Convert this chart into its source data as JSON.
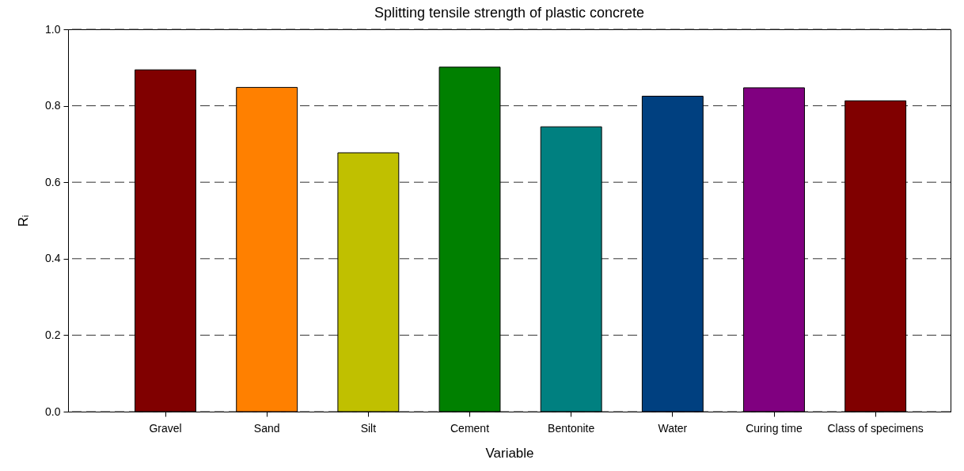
{
  "chart_data": {
    "type": "bar",
    "title": "Splitting tensile strength of plastic concrete",
    "xlabel": "Variable",
    "ylabel": "Rᵢ",
    "categories": [
      "Gravel",
      "Sand",
      "Silt",
      "Cement",
      "Bentonite",
      "Water",
      "Curing time",
      "Class of specimens"
    ],
    "values": [
      0.894,
      0.848,
      0.677,
      0.901,
      0.745,
      0.825,
      0.847,
      0.813
    ],
    "colors": [
      "#800000",
      "#ff8000",
      "#c0c000",
      "#008000",
      "#008080",
      "#004080",
      "#800080",
      "#800000"
    ],
    "ylim": [
      0,
      1.0
    ],
    "yticks": [
      {
        "value": 0,
        "label": "0.0"
      },
      0.2,
      0.4,
      0.6,
      0.8,
      {
        "value": 1,
        "label": "1.0"
      }
    ],
    "grid": "y"
  }
}
